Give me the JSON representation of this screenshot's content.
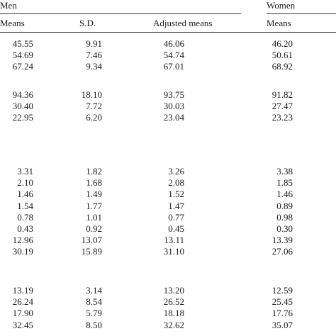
{
  "header": {
    "group_men": "Men",
    "group_women": "Women",
    "columns": [
      "Means",
      "S.D.",
      "Adjusted means",
      "Means"
    ]
  },
  "blocks": [
    {
      "rows": [
        [
          "45.55",
          "9.91",
          "46.06",
          "46.20"
        ],
        [
          "54.69",
          "7.46",
          "54.74",
          "50.61"
        ],
        [
          "67.24",
          "9.34",
          "67.01",
          "68.92"
        ]
      ]
    },
    {
      "rows": [
        [
          "94.36",
          "18.10",
          "93.75",
          "91.82"
        ],
        [
          "30.40",
          "7.72",
          "30.03",
          "27.47"
        ],
        [
          "22.95",
          "6.20",
          "23.04",
          "23.23"
        ]
      ]
    },
    {
      "rows": [
        [
          "3.31",
          "1.82",
          "3.26",
          "3.38"
        ],
        [
          "2.10",
          "1.68",
          "2.08",
          "1.85"
        ],
        [
          "1.46",
          "1.49",
          "1.52",
          "1.46"
        ],
        [
          "1.54",
          "1.77",
          "1.47",
          "0.89"
        ],
        [
          "0.78",
          "1.01",
          "0.77",
          "0.98"
        ],
        [
          "0.43",
          "0.92",
          "0.45",
          "0.30"
        ],
        [
          "12.96",
          "13.07",
          "13.11",
          "13.39"
        ],
        [
          "30.19",
          "15.89",
          "31.10",
          "27.06"
        ]
      ]
    },
    {
      "rows": [
        [
          "13.19",
          "3.14",
          "13.20",
          "12.59"
        ],
        [
          "26.24",
          "8.54",
          "26.52",
          "25.45"
        ],
        [
          "17.90",
          "5.79",
          "18.18",
          "17.76"
        ],
        [
          "32.45",
          "8.50",
          "32.62",
          "35.07"
        ]
      ]
    }
  ]
}
